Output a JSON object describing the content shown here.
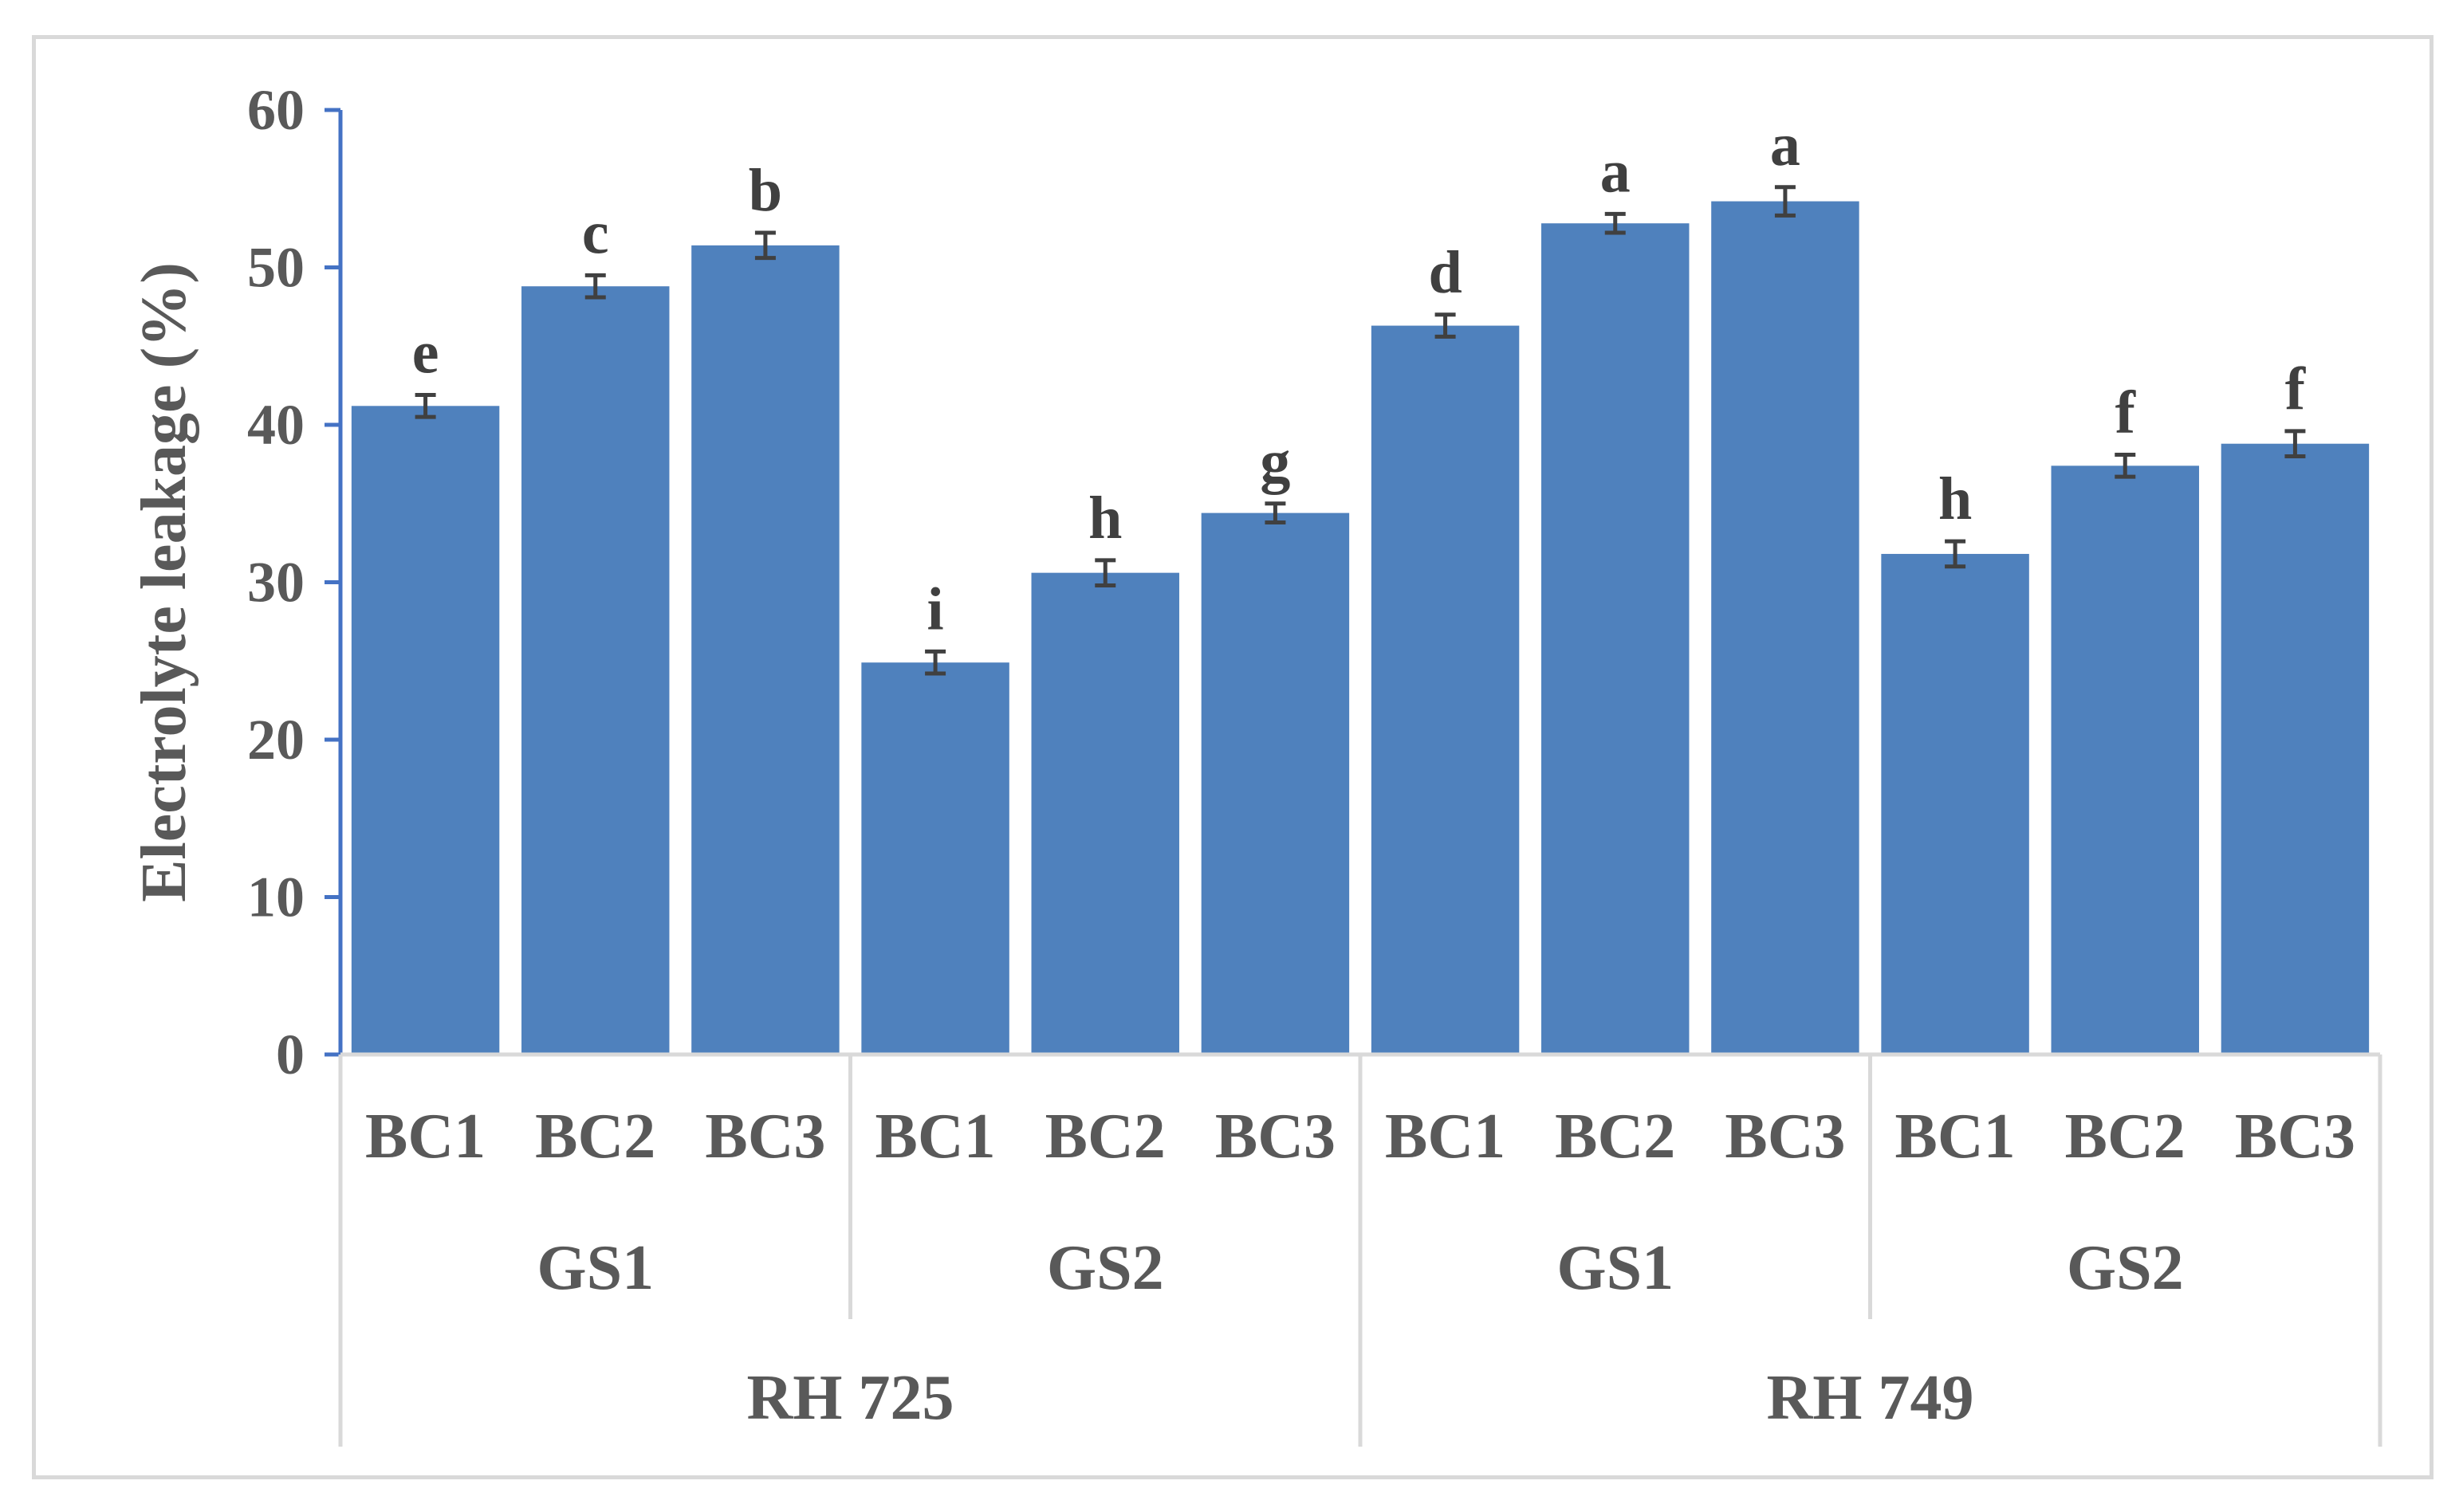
{
  "chart_data": {
    "type": "bar",
    "xlabel": "",
    "ylabel": "Electrolyte leakage (%)",
    "ylim": [
      0,
      60
    ],
    "yticks": [
      0,
      10,
      20,
      30,
      40,
      50,
      60
    ],
    "grid": false,
    "bar_color": "#4f81bd",
    "axis_color": "#4472c4",
    "categories": [
      "BC1",
      "BC2",
      "BC3",
      "BC1",
      "BC2",
      "BC3",
      "BC1",
      "BC2",
      "BC3",
      "BC1",
      "BC2",
      "BC3"
    ],
    "values": [
      41.2,
      48.8,
      51.4,
      24.9,
      30.6,
      34.4,
      46.3,
      52.8,
      54.2,
      31.8,
      37.4,
      38.8
    ],
    "errors": [
      0.7,
      0.7,
      0.8,
      0.7,
      0.8,
      0.6,
      0.7,
      0.6,
      0.9,
      0.8,
      0.7,
      0.8
    ],
    "significance": [
      "e",
      "c",
      "b",
      "i",
      "h",
      "g",
      "d",
      "a",
      "a",
      "h",
      "f",
      "f"
    ],
    "groups_level2": [
      {
        "label": "GS1",
        "span": 3
      },
      {
        "label": "GS2",
        "span": 3
      },
      {
        "label": "GS1",
        "span": 3
      },
      {
        "label": "GS2",
        "span": 3
      }
    ],
    "groups_level1": [
      {
        "label": "RH 725",
        "span": 6
      },
      {
        "label": "RH 749",
        "span": 6
      }
    ]
  }
}
